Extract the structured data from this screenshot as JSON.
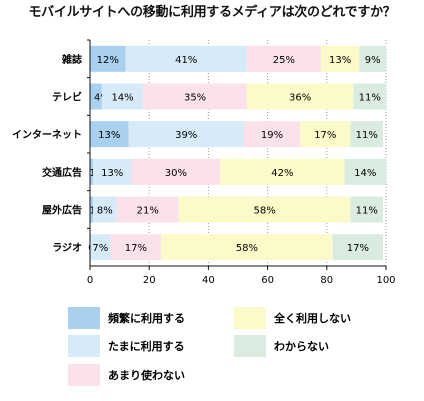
{
  "chart_data": {
    "type": "bar",
    "orientation": "horizontal",
    "stacked": true,
    "title": "モバイルサイトへの移動に利用するメディアは次のどれですか？",
    "categories": [
      "雑誌",
      "テレビ",
      "インターネット",
      "交通広告",
      "屋外広告",
      "ラジオ"
    ],
    "series": [
      {
        "name": "頻繁に利用する",
        "color": "#a9d1ef",
        "values": [
          12,
          4,
          13,
          1,
          1,
          0
        ]
      },
      {
        "name": "たまに利用する",
        "color": "#d6ebf7",
        "values": [
          41,
          14,
          39,
          13,
          8,
          7
        ]
      },
      {
        "name": "あまり使わない",
        "color": "#fbe1ec",
        "values": [
          25,
          35,
          19,
          30,
          21,
          17
        ]
      },
      {
        "name": "全く利用しない",
        "color": "#fbfac8",
        "values": [
          13,
          36,
          17,
          42,
          58,
          58
        ]
      },
      {
        "name": "わからない",
        "color": "#d9ecdf",
        "values": [
          9,
          11,
          11,
          14,
          11,
          17
        ]
      }
    ],
    "value_labels": [
      [
        "12%",
        "41%",
        "25%",
        "13%",
        "9%"
      ],
      [
        "4%",
        "14%",
        "35%",
        "36%",
        "11%"
      ],
      [
        "13%",
        "39%",
        "19%",
        "17%",
        "11%"
      ],
      [
        "1%",
        "13%",
        "30%",
        "42%",
        "14%"
      ],
      [
        "1%",
        "8%",
        "21%",
        "58%",
        "11%"
      ],
      [
        "0%",
        "7%",
        "17%",
        "58%",
        "17%"
      ]
    ],
    "xlim": [
      0,
      100
    ],
    "xticks": [
      "0",
      "20",
      "40",
      "60",
      "80",
      "100"
    ],
    "grid": "vertical dotted",
    "legend": "bottom"
  }
}
